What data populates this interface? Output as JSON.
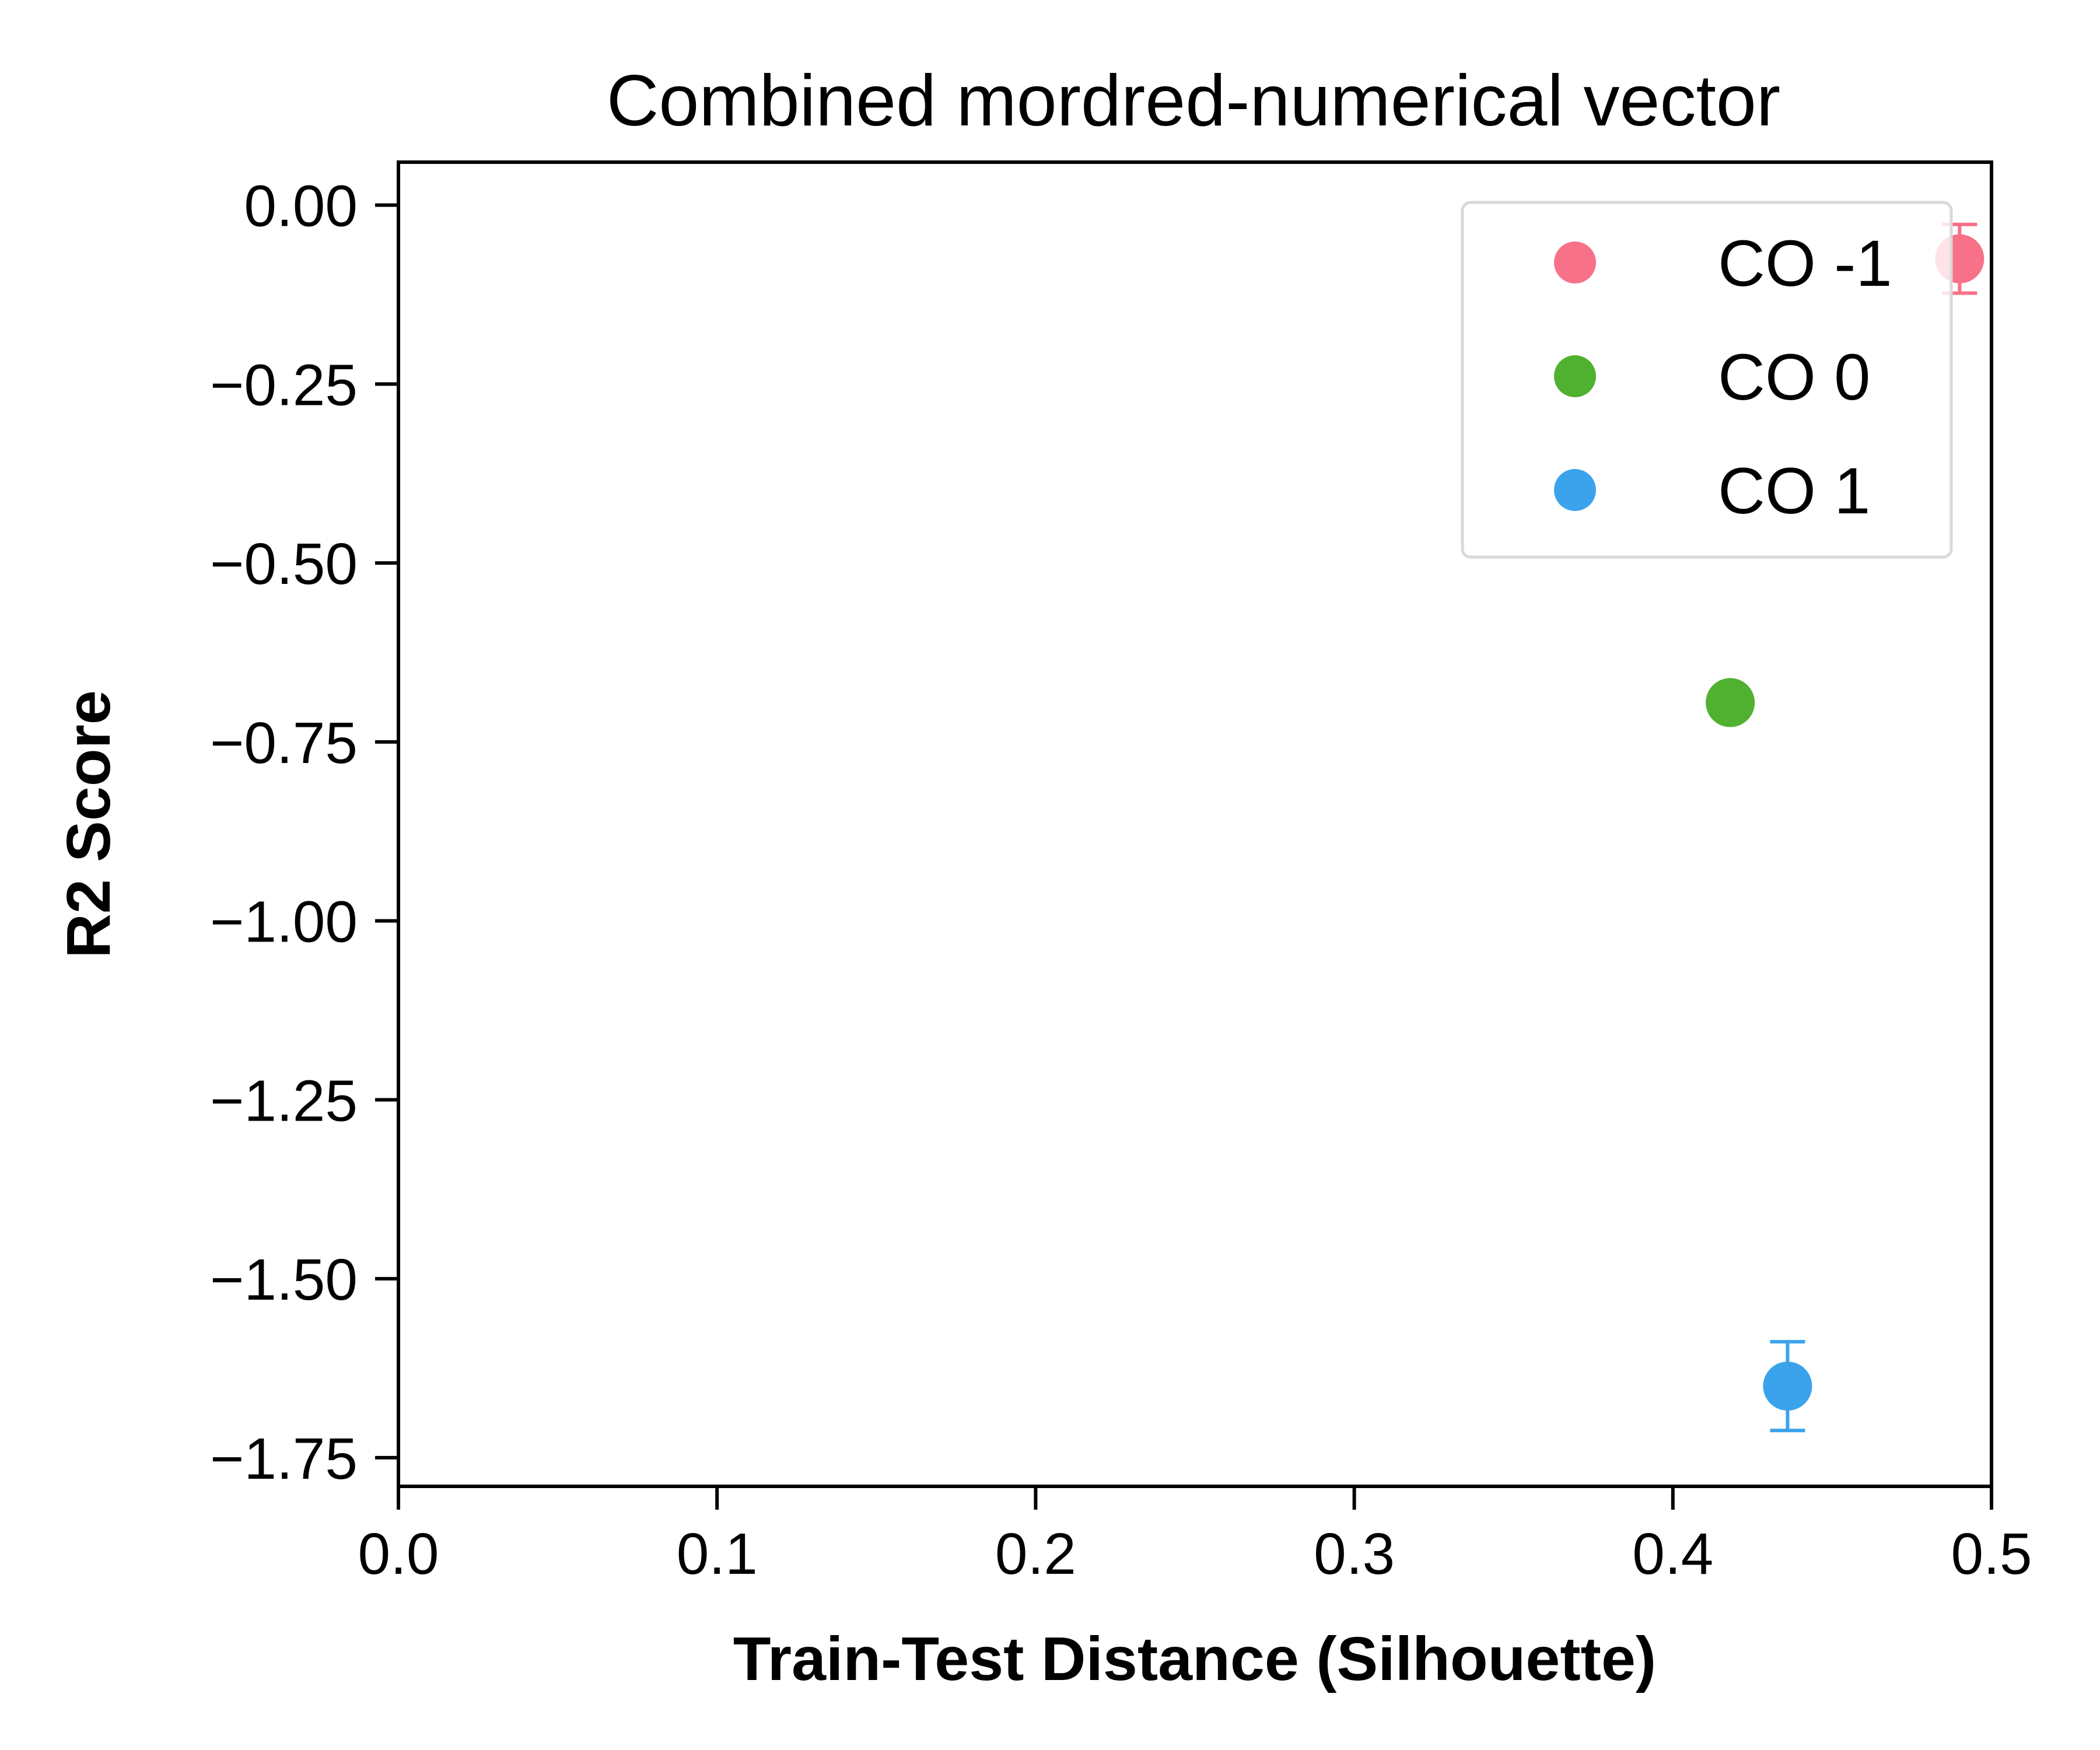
{
  "chart_data": {
    "type": "scatter",
    "title": "Combined mordred-numerical vector",
    "xlabel": "Train-Test Distance (Silhouette)",
    "ylabel": "R2 Score",
    "xlim": [
      0.0,
      0.5
    ],
    "ylim": [
      -1.79,
      0.06
    ],
    "xticks": [
      0.0,
      0.1,
      0.2,
      0.3,
      0.4,
      0.5
    ],
    "xtick_labels": [
      "0.0",
      "0.1",
      "0.2",
      "0.3",
      "0.4",
      "0.5"
    ],
    "yticks": [
      0.0,
      -0.25,
      -0.5,
      -0.75,
      -1.0,
      -1.25,
      -1.5,
      -1.75
    ],
    "ytick_labels": [
      "0.00",
      "−0.25",
      "−0.50",
      "−0.75",
      "−1.00",
      "−1.25",
      "−1.50",
      "−1.75"
    ],
    "grid": false,
    "legend_position": "top-right",
    "series": [
      {
        "name": "CO -1",
        "color": "#f77189",
        "x": [
          0.49
        ],
        "y": [
          -0.075
        ],
        "yerr": [
          0.048
        ]
      },
      {
        "name": "CO 0",
        "color": "#50b131",
        "x": [
          0.418
        ],
        "y": [
          -0.695
        ],
        "yerr": [
          0.012
        ]
      },
      {
        "name": "CO 1",
        "color": "#3ba3ec",
        "x": [
          0.436
        ],
        "y": [
          -1.65
        ],
        "yerr": [
          0.062
        ]
      }
    ]
  }
}
